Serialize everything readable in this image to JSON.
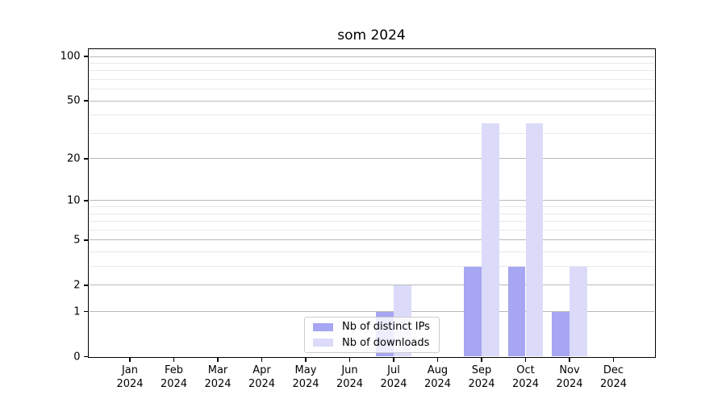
{
  "figure": {
    "title": "som 2024"
  },
  "legend": {
    "items": [
      {
        "label": "Nb of distinct IPs",
        "color": "#a6a6f2"
      },
      {
        "label": "Nb of downloads",
        "color": "#dbdbf9"
      }
    ]
  },
  "chart_data": {
    "type": "bar",
    "title": "som 2024",
    "categories": [
      "Jan 2024",
      "Feb 2024",
      "Mar 2024",
      "Apr 2024",
      "May 2024",
      "Jun 2024",
      "Jul 2024",
      "Aug 2024",
      "Sep 2024",
      "Oct 2024",
      "Nov 2024",
      "Dec 2024"
    ],
    "series": [
      {
        "name": "Nb of distinct IPs",
        "color": "#a6a6f2",
        "values": [
          0,
          0,
          0,
          0,
          0,
          0,
          1,
          0,
          3,
          3,
          1,
          0
        ]
      },
      {
        "name": "Nb of downloads",
        "color": "#dbdbf9",
        "values": [
          0,
          0,
          0,
          0,
          0,
          0,
          2,
          0,
          35,
          35,
          3,
          0
        ]
      }
    ],
    "yscale": "log1p",
    "ylim": [
      0,
      112
    ],
    "y_major_ticks": [
      0,
      1,
      2,
      5,
      10,
      20,
      50,
      100
    ],
    "y_minor_gridlines": [
      3,
      4,
      6,
      7,
      8,
      9,
      30,
      40,
      60,
      70,
      80,
      90
    ],
    "grid": "horizontal",
    "legend_position": "lower center",
    "colors": {
      "major_grid": "#b9b9b9",
      "minor_grid": "#e9e9ec",
      "spine": "#000000",
      "background": "#ffffff",
      "text": "#000000"
    }
  }
}
